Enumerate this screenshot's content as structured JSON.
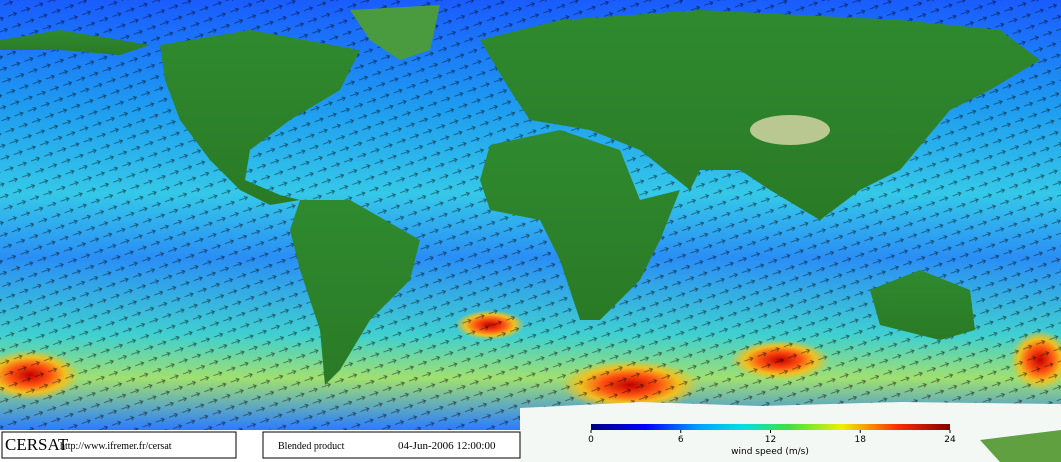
{
  "footer": {
    "logo": "CERSAT",
    "url": "http://www.ifremer.fr/cersat",
    "product": "Blended product",
    "timestamp": "04-Jun-2006 12:00:00"
  },
  "colorbar": {
    "label": "wind speed (m/s)",
    "lim": [
      0,
      24
    ],
    "ticks": [
      0,
      6,
      12,
      18,
      24
    ]
  }
}
